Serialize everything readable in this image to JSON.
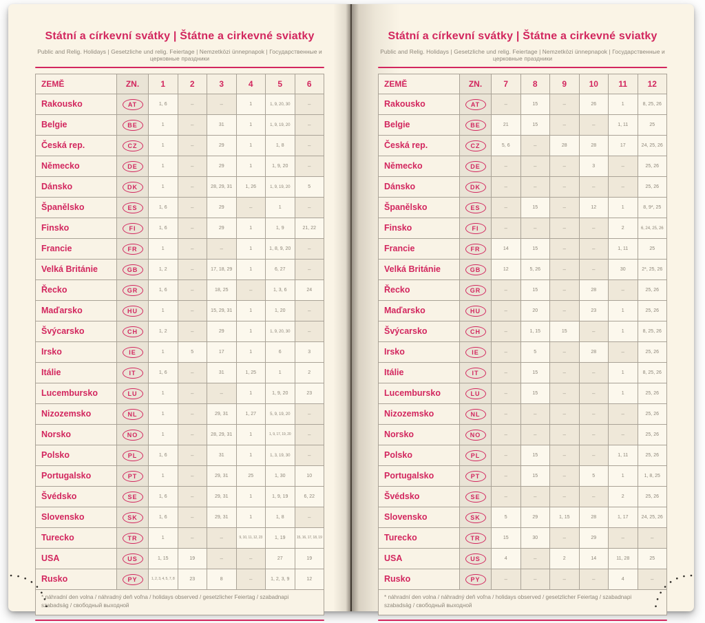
{
  "title": "Státní a církevní svátky | Štátne a cirkevné sviatky",
  "subtitle": "Public and Relig. Holidays | Gesetzliche und relig. Feiertage | Nemzetközi ünnepnapok | Государственные и церковные праздники",
  "footnote": "* náhradní den volna / náhradný deň voľna / holidays observed / gesetzlicher Feiertag / szabadnapi szabadság / свободный выходной",
  "colors": {
    "accent_pink": "#d2265e",
    "value_gray": "#8d8679",
    "page_cream": "#faf4e6",
    "dash_cell": "#efe8d9",
    "border_gray": "#a9a296"
  },
  "header": {
    "country_label": "ZEMĚ",
    "code_label": "ZN.",
    "months_left": [
      "1",
      "2",
      "3",
      "4",
      "5",
      "6"
    ],
    "months_right": [
      "7",
      "8",
      "9",
      "10",
      "11",
      "12"
    ]
  },
  "countries": [
    {
      "name": "Rakousko",
      "code": "AT",
      "m1": [
        "1, 6",
        "–",
        "–",
        "1",
        "1, 9, 20, 30",
        "–"
      ],
      "m2": [
        "–",
        "15",
        "–",
        "26",
        "1",
        "8, 25, 26"
      ]
    },
    {
      "name": "Belgie",
      "code": "BE",
      "m1": [
        "1",
        "–",
        "31",
        "1",
        "1, 9, 19, 20",
        "–"
      ],
      "m2": [
        "21",
        "15",
        "–",
        "–",
        "1, 11",
        "25"
      ]
    },
    {
      "name": "Česká rep.",
      "code": "CZ",
      "m1": [
        "1",
        "–",
        "29",
        "1",
        "1, 8",
        "–"
      ],
      "m2": [
        "5, 6",
        "–",
        "28",
        "28",
        "17",
        "24, 25, 26"
      ]
    },
    {
      "name": "Německo",
      "code": "DE",
      "m1": [
        "1",
        "–",
        "29",
        "1",
        "1, 9, 20",
        "–"
      ],
      "m2": [
        "–",
        "–",
        "–",
        "3",
        "–",
        "25, 26"
      ]
    },
    {
      "name": "Dánsko",
      "code": "DK",
      "m1": [
        "1",
        "–",
        "28, 29, 31",
        "1, 26",
        "1, 9, 19, 20",
        "5"
      ],
      "m2": [
        "–",
        "–",
        "–",
        "–",
        "–",
        "25, 26"
      ]
    },
    {
      "name": "Španělsko",
      "code": "ES",
      "m1": [
        "1, 6",
        "–",
        "29",
        "–",
        "1",
        "–"
      ],
      "m2": [
        "–",
        "15",
        "–",
        "12",
        "1",
        "8, 9*, 25"
      ]
    },
    {
      "name": "Finsko",
      "code": "FI",
      "m1": [
        "1, 6",
        "–",
        "29",
        "1",
        "1, 9",
        "21, 22"
      ],
      "m2": [
        "–",
        "–",
        "–",
        "–",
        "2",
        "6, 24, 25, 26"
      ]
    },
    {
      "name": "Francie",
      "code": "FR",
      "m1": [
        "1",
        "–",
        "–",
        "1",
        "1, 8, 9, 20",
        "–"
      ],
      "m2": [
        "14",
        "15",
        "–",
        "–",
        "1, 11",
        "25"
      ]
    },
    {
      "name": "Velká Británie",
      "code": "GB",
      "m1": [
        "1, 2",
        "–",
        "17, 18, 29",
        "1",
        "6, 27",
        "–"
      ],
      "m2": [
        "12",
        "5, 26",
        "–",
        "–",
        "30",
        "2*, 25, 26"
      ]
    },
    {
      "name": "Řecko",
      "code": "GR",
      "m1": [
        "1, 6",
        "–",
        "18, 25",
        "–",
        "1, 3, 6",
        "24"
      ],
      "m2": [
        "–",
        "15",
        "–",
        "28",
        "–",
        "25, 26"
      ]
    },
    {
      "name": "Maďarsko",
      "code": "HU",
      "m1": [
        "1",
        "–",
        "15, 29, 31",
        "1",
        "1, 20",
        "–"
      ],
      "m2": [
        "–",
        "20",
        "–",
        "23",
        "1",
        "25, 26"
      ]
    },
    {
      "name": "Švýcarsko",
      "code": "CH",
      "m1": [
        "1, 2",
        "–",
        "29",
        "1",
        "1, 9, 20, 30",
        "–"
      ],
      "m2": [
        "–",
        "1, 15",
        "15",
        "–",
        "1",
        "8, 25, 26"
      ]
    },
    {
      "name": "Irsko",
      "code": "IE",
      "m1": [
        "1",
        "5",
        "17",
        "1",
        "6",
        "3"
      ],
      "m2": [
        "–",
        "5",
        "–",
        "28",
        "–",
        "25, 26"
      ]
    },
    {
      "name": "Itálie",
      "code": "IT",
      "m1": [
        "1, 6",
        "–",
        "31",
        "1, 25",
        "1",
        "2"
      ],
      "m2": [
        "–",
        "15",
        "–",
        "–",
        "1",
        "8, 25, 26"
      ]
    },
    {
      "name": "Lucembursko",
      "code": "LU",
      "m1": [
        "1",
        "–",
        "–",
        "1",
        "1, 9, 20",
        "23"
      ],
      "m2": [
        "–",
        "15",
        "–",
        "–",
        "1",
        "25, 26"
      ]
    },
    {
      "name": "Nizozemsko",
      "code": "NL",
      "m1": [
        "1",
        "–",
        "29, 31",
        "1, 27",
        "5, 9, 19, 20",
        "–"
      ],
      "m2": [
        "–",
        "–",
        "–",
        "–",
        "–",
        "25, 26"
      ]
    },
    {
      "name": "Norsko",
      "code": "NO",
      "m1": [
        "1",
        "–",
        "28, 29, 31",
        "1",
        "1, 9, 17, 19, 20",
        "–"
      ],
      "m2": [
        "–",
        "–",
        "–",
        "–",
        "–",
        "25, 26"
      ]
    },
    {
      "name": "Polsko",
      "code": "PL",
      "m1": [
        "1, 6",
        "–",
        "31",
        "1",
        "1, 3, 19, 30",
        "–"
      ],
      "m2": [
        "–",
        "15",
        "–",
        "–",
        "1, 11",
        "25, 26"
      ]
    },
    {
      "name": "Portugalsko",
      "code": "PT",
      "m1": [
        "1",
        "–",
        "29, 31",
        "25",
        "1, 30",
        "10"
      ],
      "m2": [
        "–",
        "15",
        "–",
        "5",
        "1",
        "1, 8, 25"
      ]
    },
    {
      "name": "Švédsko",
      "code": "SE",
      "m1": [
        "1, 6",
        "–",
        "29, 31",
        "1",
        "1, 9, 19",
        "6, 22"
      ],
      "m2": [
        "–",
        "–",
        "–",
        "–",
        "2",
        "25, 26"
      ]
    },
    {
      "name": "Slovensko",
      "code": "SK",
      "m1": [
        "1, 6",
        "–",
        "29, 31",
        "1",
        "1, 8",
        "–"
      ],
      "m2": [
        "5",
        "29",
        "1, 15",
        "28",
        "1, 17",
        "24, 25, 26"
      ]
    },
    {
      "name": "Turecko",
      "code": "TR",
      "m1": [
        "1",
        "–",
        "–",
        "9, 10, 11, 12, 23",
        "1, 19",
        "15, 16, 17, 18, 19"
      ],
      "m2": [
        "15",
        "30",
        "–",
        "29",
        "–",
        "–"
      ]
    },
    {
      "name": "USA",
      "code": "US",
      "m1": [
        "1, 15",
        "19",
        "–",
        "–",
        "27",
        "19"
      ],
      "m2": [
        "4",
        "–",
        "2",
        "14",
        "11, 28",
        "25"
      ]
    },
    {
      "name": "Rusko",
      "code": "PY",
      "m1": [
        "1, 2, 3, 4, 5, 7, 8",
        "23",
        "8",
        "–",
        "1, 2, 3, 9",
        "12"
      ],
      "m2": [
        "–",
        "–",
        "–",
        "–",
        "4",
        "–"
      ]
    }
  ]
}
